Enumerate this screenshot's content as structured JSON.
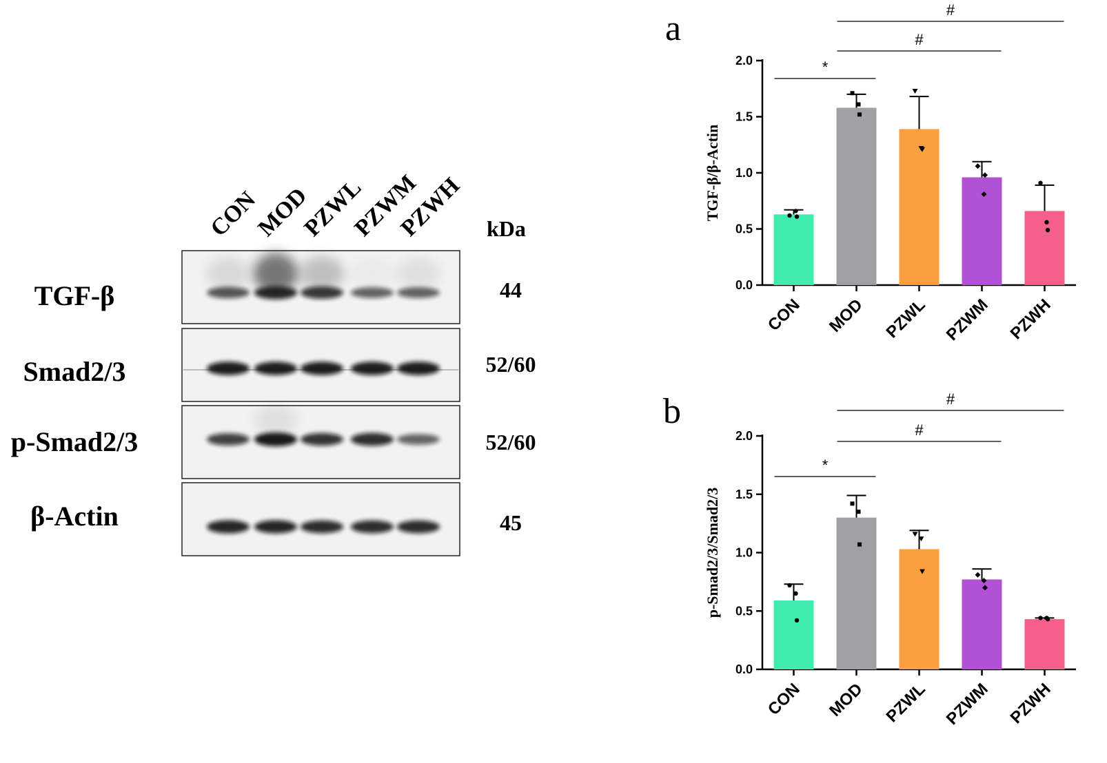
{
  "blot": {
    "lanes": [
      "CON",
      "MOD",
      "PZWL",
      "PZWM",
      "PZWH"
    ],
    "kda_label": "kDa",
    "rows": [
      {
        "protein": "TGF-β",
        "kda": "44",
        "intensity": [
          0.55,
          0.85,
          0.75,
          0.45,
          0.45
        ],
        "smear": [
          0.15,
          0.75,
          0.3,
          0.05,
          0.1
        ]
      },
      {
        "protein": "Smad2/3",
        "kda": "52/60",
        "intensity": [
          0.95,
          0.95,
          0.95,
          0.95,
          0.95
        ],
        "smear": [
          0,
          0,
          0,
          0,
          0
        ]
      },
      {
        "protein": "p-Smad2/3",
        "kda": "52/60",
        "intensity": [
          0.7,
          1.0,
          0.8,
          0.85,
          0.45
        ],
        "smear": [
          0,
          0.1,
          0,
          0,
          0
        ]
      },
      {
        "protein": "β-Actin",
        "kda": "45",
        "intensity": [
          0.9,
          0.9,
          0.85,
          0.85,
          0.85
        ],
        "smear": [
          0,
          0,
          0,
          0,
          0
        ]
      }
    ]
  },
  "chart_data": [
    {
      "panel": "a",
      "type": "bar",
      "categories": [
        "CON",
        "MOD",
        "PZWL",
        "PZWM",
        "PZWH"
      ],
      "values": [
        0.63,
        1.58,
        1.39,
        0.96,
        0.66
      ],
      "error": [
        0.04,
        0.12,
        0.29,
        0.14,
        0.23
      ],
      "points": [
        [
          0.62,
          0.61,
          0.66
        ],
        [
          1.71,
          1.52,
          1.61
        ],
        [
          1.73,
          1.21,
          1.22
        ],
        [
          1.06,
          0.98,
          0.81
        ],
        [
          0.91,
          0.49,
          0.56
        ]
      ],
      "point_markers": [
        "circle",
        "square",
        "triangle",
        "diamond",
        "circle"
      ],
      "colors": [
        "#40edaf",
        "#a0a0a5",
        "#fb9f40",
        "#b251d6",
        "#f5608a"
      ],
      "ylabel": "TGF-β/β-Actin",
      "ylim": [
        0,
        2.0
      ],
      "yticks": [
        "0.0",
        "0.5",
        "1.0",
        "1.5",
        "2.0"
      ],
      "significance": [
        {
          "from": "CON",
          "to": "MOD",
          "symbol": "*"
        },
        {
          "from": "MOD",
          "to": "PZWM",
          "symbol": "#"
        },
        {
          "from": "MOD",
          "to": "PZWH",
          "symbol": "#"
        }
      ]
    },
    {
      "panel": "b",
      "type": "bar",
      "categories": [
        "CON",
        "MOD",
        "PZWL",
        "PZWM",
        "PZWH"
      ],
      "values": [
        0.59,
        1.3,
        1.03,
        0.77,
        0.43
      ],
      "error": [
        0.14,
        0.19,
        0.16,
        0.09,
        0.01
      ],
      "points": [
        [
          0.72,
          0.42,
          0.65
        ],
        [
          1.42,
          1.07,
          1.35
        ],
        [
          1.16,
          0.84,
          1.12
        ],
        [
          0.81,
          0.7,
          0.76
        ],
        [
          0.44,
          0.43,
          0.44
        ]
      ],
      "point_markers": [
        "circle",
        "square",
        "triangle",
        "diamond",
        "circle"
      ],
      "colors": [
        "#40edaf",
        "#a0a0a5",
        "#fb9f40",
        "#b251d6",
        "#f5608a"
      ],
      "ylabel": "p-Smad2/3/Smad2/3",
      "ylim": [
        0,
        2.0
      ],
      "yticks": [
        "0.0",
        "0.5",
        "1.0",
        "1.5",
        "2.0"
      ],
      "significance": [
        {
          "from": "CON",
          "to": "MOD",
          "symbol": "*"
        },
        {
          "from": "MOD",
          "to": "PZWM",
          "symbol": "#"
        },
        {
          "from": "MOD",
          "to": "PZWH",
          "symbol": "#"
        }
      ]
    }
  ]
}
